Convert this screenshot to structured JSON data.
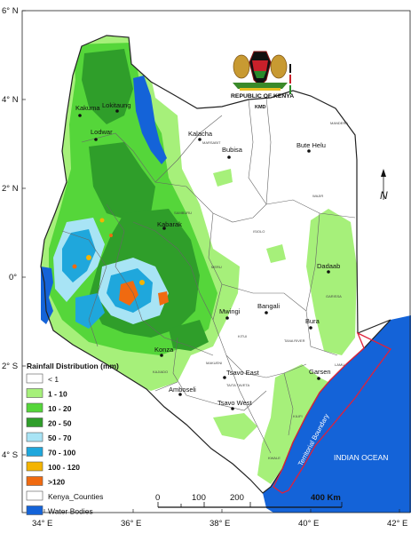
{
  "axes": {
    "lat_labels": [
      "6° N",
      "4° N",
      "2° N",
      "0°",
      "2° S",
      "4° S"
    ],
    "lon_labels": [
      "34° E",
      "36° E",
      "38° E",
      "40° E",
      "42° E"
    ]
  },
  "towns": [
    {
      "name": "Lokitaung"
    },
    {
      "name": "Kakuma"
    },
    {
      "name": "Lodwar"
    },
    {
      "name": "Kalacha"
    },
    {
      "name": "Bubisa"
    },
    {
      "name": "Bute Helu"
    },
    {
      "name": "Kabarak"
    },
    {
      "name": "Dadaab"
    },
    {
      "name": "Bangali"
    },
    {
      "name": "Mwingi"
    },
    {
      "name": "Bura"
    },
    {
      "name": "Konza"
    },
    {
      "name": "Tsavo East"
    },
    {
      "name": "Garsen"
    },
    {
      "name": "Amboseli"
    },
    {
      "name": "Tsavo West"
    }
  ],
  "region_labels": {
    "mandera": "MANDERA",
    "marsabit": "MARSABIT",
    "wajir": "WAJIR",
    "isiolo": "ISIOLO",
    "garissa": "GARISSA",
    "tana_river": "TANA RIVER",
    "kitui": "KITUI",
    "lamu": "LAMU",
    "kilifi": "KILIFI",
    "kwale": "KWALE",
    "taita": "TAITA TAVETA",
    "samburu": "SAMBURU",
    "makueni": "MAKUENI",
    "kajiado": "KAJIADO",
    "meru": "MERU"
  },
  "emblem": {
    "caption": "REPUBLIC OF KENYA",
    "agency": "KMD"
  },
  "north_arrow": {
    "label": "N"
  },
  "ocean_label": "INDIAN OCEAN",
  "territorial_label": "Territorial Boundary",
  "legend": {
    "title": "Rainfall Distribution (mm)",
    "items": [
      {
        "label": "< 1",
        "color": "#ffffff",
        "bold": false
      },
      {
        "label": "1 - 10",
        "color": "#a6f07a",
        "bold": true
      },
      {
        "label": "10 - 20",
        "color": "#55d63a",
        "bold": true
      },
      {
        "label": "20 - 50",
        "color": "#2f9e2a",
        "bold": true
      },
      {
        "label": "50 - 70",
        "color": "#a8e4f5",
        "bold": true
      },
      {
        "label": "70 - 100",
        "color": "#1fa7dc",
        "bold": true
      },
      {
        "label": "100 - 120",
        "color": "#f4b400",
        "bold": true
      },
      {
        "label": ">120",
        "color": "#f06a10",
        "bold": true
      },
      {
        "label": "Kenya_Counties",
        "color": "#ffffff",
        "bold": false
      },
      {
        "label": "Water Bodies",
        "color": "#1463d8",
        "bold": false
      }
    ]
  },
  "scale_bar": {
    "ticks": [
      "0",
      "100",
      "200"
    ],
    "end_label": "400 Km"
  },
  "colors": {
    "ocean": "#1463d8",
    "lake": "#1463d8",
    "territorial": "#e0203a",
    "border": "#222222"
  }
}
